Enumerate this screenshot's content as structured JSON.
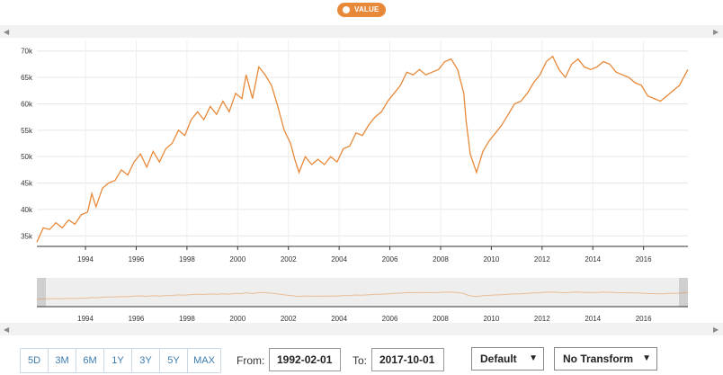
{
  "legend": {
    "label": "VALUE",
    "color": "#e8893a"
  },
  "scroll": {
    "left_arrow": "◀",
    "right_arrow": "▶"
  },
  "chart_data": {
    "type": "line",
    "series": [
      {
        "name": "VALUE",
        "color": "#e8893a",
        "x_start": "1992-02",
        "x_end": "2017-10",
        "points": [
          [
            "1992-02",
            33.8
          ],
          [
            "1992-05",
            36.5
          ],
          [
            "1992-08",
            36.2
          ],
          [
            "1992-11",
            37.5
          ],
          [
            "1993-02",
            36.5
          ],
          [
            "1993-05",
            38.0
          ],
          [
            "1993-08",
            37.2
          ],
          [
            "1993-11",
            39.0
          ],
          [
            "1994-02",
            39.5
          ],
          [
            "1994-04",
            43.0
          ],
          [
            "1994-06",
            40.5
          ],
          [
            "1994-09",
            44.0
          ],
          [
            "1994-12",
            45.0
          ],
          [
            "1995-03",
            45.5
          ],
          [
            "1995-06",
            47.5
          ],
          [
            "1995-09",
            46.5
          ],
          [
            "1995-12",
            49.0
          ],
          [
            "1996-03",
            50.5
          ],
          [
            "1996-06",
            48.0
          ],
          [
            "1996-09",
            51.0
          ],
          [
            "1996-12",
            49.0
          ],
          [
            "1997-03",
            51.5
          ],
          [
            "1997-06",
            52.5
          ],
          [
            "1997-09",
            55.0
          ],
          [
            "1997-12",
            54.0
          ],
          [
            "1998-03",
            57.0
          ],
          [
            "1998-06",
            58.5
          ],
          [
            "1998-09",
            57.0
          ],
          [
            "1998-12",
            59.5
          ],
          [
            "1999-03",
            58.0
          ],
          [
            "1999-06",
            60.5
          ],
          [
            "1999-09",
            58.5
          ],
          [
            "1999-12",
            62.0
          ],
          [
            "2000-03",
            61.0
          ],
          [
            "2000-05",
            65.5
          ],
          [
            "2000-08",
            61.0
          ],
          [
            "2000-11",
            67.0
          ],
          [
            "2001-02",
            65.5
          ],
          [
            "2001-05",
            63.5
          ],
          [
            "2001-08",
            59.5
          ],
          [
            "2001-11",
            55.0
          ],
          [
            "2002-02",
            52.5
          ],
          [
            "2002-04",
            49.5
          ],
          [
            "2002-06",
            47.0
          ],
          [
            "2002-09",
            50.0
          ],
          [
            "2002-12",
            48.5
          ],
          [
            "2003-03",
            49.5
          ],
          [
            "2003-06",
            48.5
          ],
          [
            "2003-09",
            50.0
          ],
          [
            "2003-12",
            49.0
          ],
          [
            "2004-03",
            51.5
          ],
          [
            "2004-06",
            52.0
          ],
          [
            "2004-09",
            54.5
          ],
          [
            "2004-12",
            54.0
          ],
          [
            "2005-03",
            56.0
          ],
          [
            "2005-06",
            57.5
          ],
          [
            "2005-09",
            58.5
          ],
          [
            "2005-12",
            60.5
          ],
          [
            "2006-03",
            62.0
          ],
          [
            "2006-06",
            63.5
          ],
          [
            "2006-09",
            66.0
          ],
          [
            "2006-12",
            65.5
          ],
          [
            "2007-03",
            66.5
          ],
          [
            "2007-06",
            65.5
          ],
          [
            "2007-09",
            66.0
          ],
          [
            "2007-12",
            66.5
          ],
          [
            "2008-03",
            68.0
          ],
          [
            "2008-06",
            68.5
          ],
          [
            "2008-09",
            66.5
          ],
          [
            "2008-12",
            62.0
          ],
          [
            "2009-01",
            57.0
          ],
          [
            "2009-03",
            50.5
          ],
          [
            "2009-06",
            47.0
          ],
          [
            "2009-09",
            51.0
          ],
          [
            "2009-12",
            53.0
          ],
          [
            "2010-03",
            54.5
          ],
          [
            "2010-06",
            56.0
          ],
          [
            "2010-09",
            58.0
          ],
          [
            "2010-12",
            60.0
          ],
          [
            "2011-03",
            60.5
          ],
          [
            "2011-06",
            62.0
          ],
          [
            "2011-09",
            64.0
          ],
          [
            "2011-12",
            65.5
          ],
          [
            "2012-03",
            68.0
          ],
          [
            "2012-06",
            69.0
          ],
          [
            "2012-09",
            66.5
          ],
          [
            "2012-12",
            65.0
          ],
          [
            "2013-03",
            67.5
          ],
          [
            "2013-06",
            68.5
          ],
          [
            "2013-09",
            67.0
          ],
          [
            "2013-12",
            66.5
          ],
          [
            "2014-03",
            67.0
          ],
          [
            "2014-06",
            68.0
          ],
          [
            "2014-09",
            67.5
          ],
          [
            "2014-12",
            66.0
          ],
          [
            "2015-03",
            65.5
          ],
          [
            "2015-06",
            65.0
          ],
          [
            "2015-09",
            64.0
          ],
          [
            "2015-12",
            63.5
          ],
          [
            "2016-03",
            61.5
          ],
          [
            "2016-06",
            61.0
          ],
          [
            "2016-09",
            60.5
          ],
          [
            "2016-12",
            61.5
          ],
          [
            "2017-03",
            62.5
          ],
          [
            "2017-06",
            63.5
          ],
          [
            "2017-08",
            65.0
          ],
          [
            "2017-10",
            66.5
          ]
        ]
      }
    ],
    "y_ticks": [
      "35k",
      "40k",
      "45k",
      "50k",
      "55k",
      "60k",
      "65k",
      "70k"
    ],
    "y_tick_values": [
      35,
      40,
      45,
      50,
      55,
      60,
      65,
      70
    ],
    "ylim": [
      33,
      72
    ],
    "x_ticks": [
      "1994",
      "1996",
      "1998",
      "2000",
      "2002",
      "2004",
      "2006",
      "2008",
      "2010",
      "2012",
      "2014",
      "2016"
    ],
    "grid": true,
    "title": "",
    "xlabel": "",
    "ylabel": ""
  },
  "range_buttons": [
    "5D",
    "3M",
    "6M",
    "1Y",
    "3Y",
    "5Y",
    "MAX"
  ],
  "from_label": "From:",
  "from_value": "1992-02-01",
  "to_label": "To:",
  "to_value": "2017-10-01",
  "frequency_select": "Default",
  "transform_select": "No Transform"
}
